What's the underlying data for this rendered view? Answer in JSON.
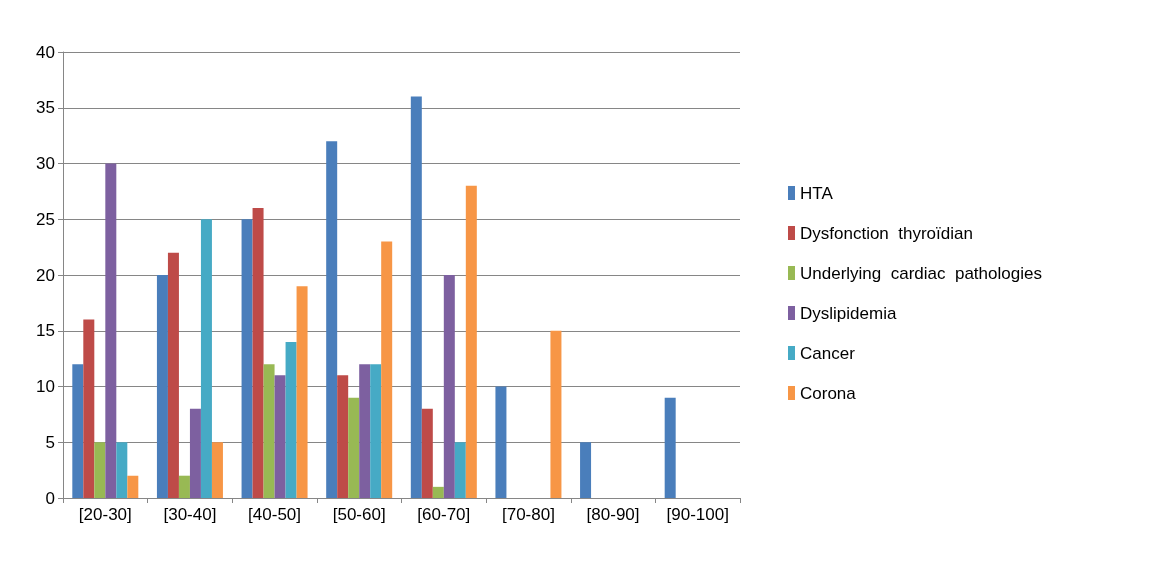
{
  "chart_data": {
    "type": "bar",
    "categories": [
      "[20-30]",
      "[30-40]",
      "[40-50]",
      "[50-60]",
      "[60-70]",
      "[70-80]",
      "[80-90]",
      "[90-100]"
    ],
    "series": [
      {
        "name": "HTA",
        "color": "#4a7ebb",
        "values": [
          12,
          20,
          25,
          32,
          36,
          10,
          5,
          9
        ]
      },
      {
        "name": "Dysfonction  thyroïdian",
        "color": "#be4b48",
        "values": [
          16,
          22,
          26,
          11,
          8,
          0,
          0,
          0
        ]
      },
      {
        "name": "Underlying  cardiac  pathologies",
        "color": "#98b954",
        "values": [
          5,
          2,
          12,
          9,
          1,
          0,
          0,
          0
        ]
      },
      {
        "name": "Dyslipidemia",
        "color": "#7d60a0",
        "values": [
          30,
          8,
          11,
          12,
          20,
          0,
          0,
          0
        ]
      },
      {
        "name": "Cancer",
        "color": "#46aac5",
        "values": [
          5,
          25,
          14,
          12,
          5,
          0,
          0,
          0
        ]
      },
      {
        "name": "Corona",
        "color": "#f79646",
        "values": [
          2,
          5,
          19,
          23,
          28,
          15,
          0,
          0
        ]
      }
    ],
    "ylim": [
      0,
      40
    ],
    "yticks": [
      0,
      5,
      10,
      15,
      20,
      25,
      30,
      35,
      40
    ],
    "grid": "y",
    "legend": "right"
  }
}
